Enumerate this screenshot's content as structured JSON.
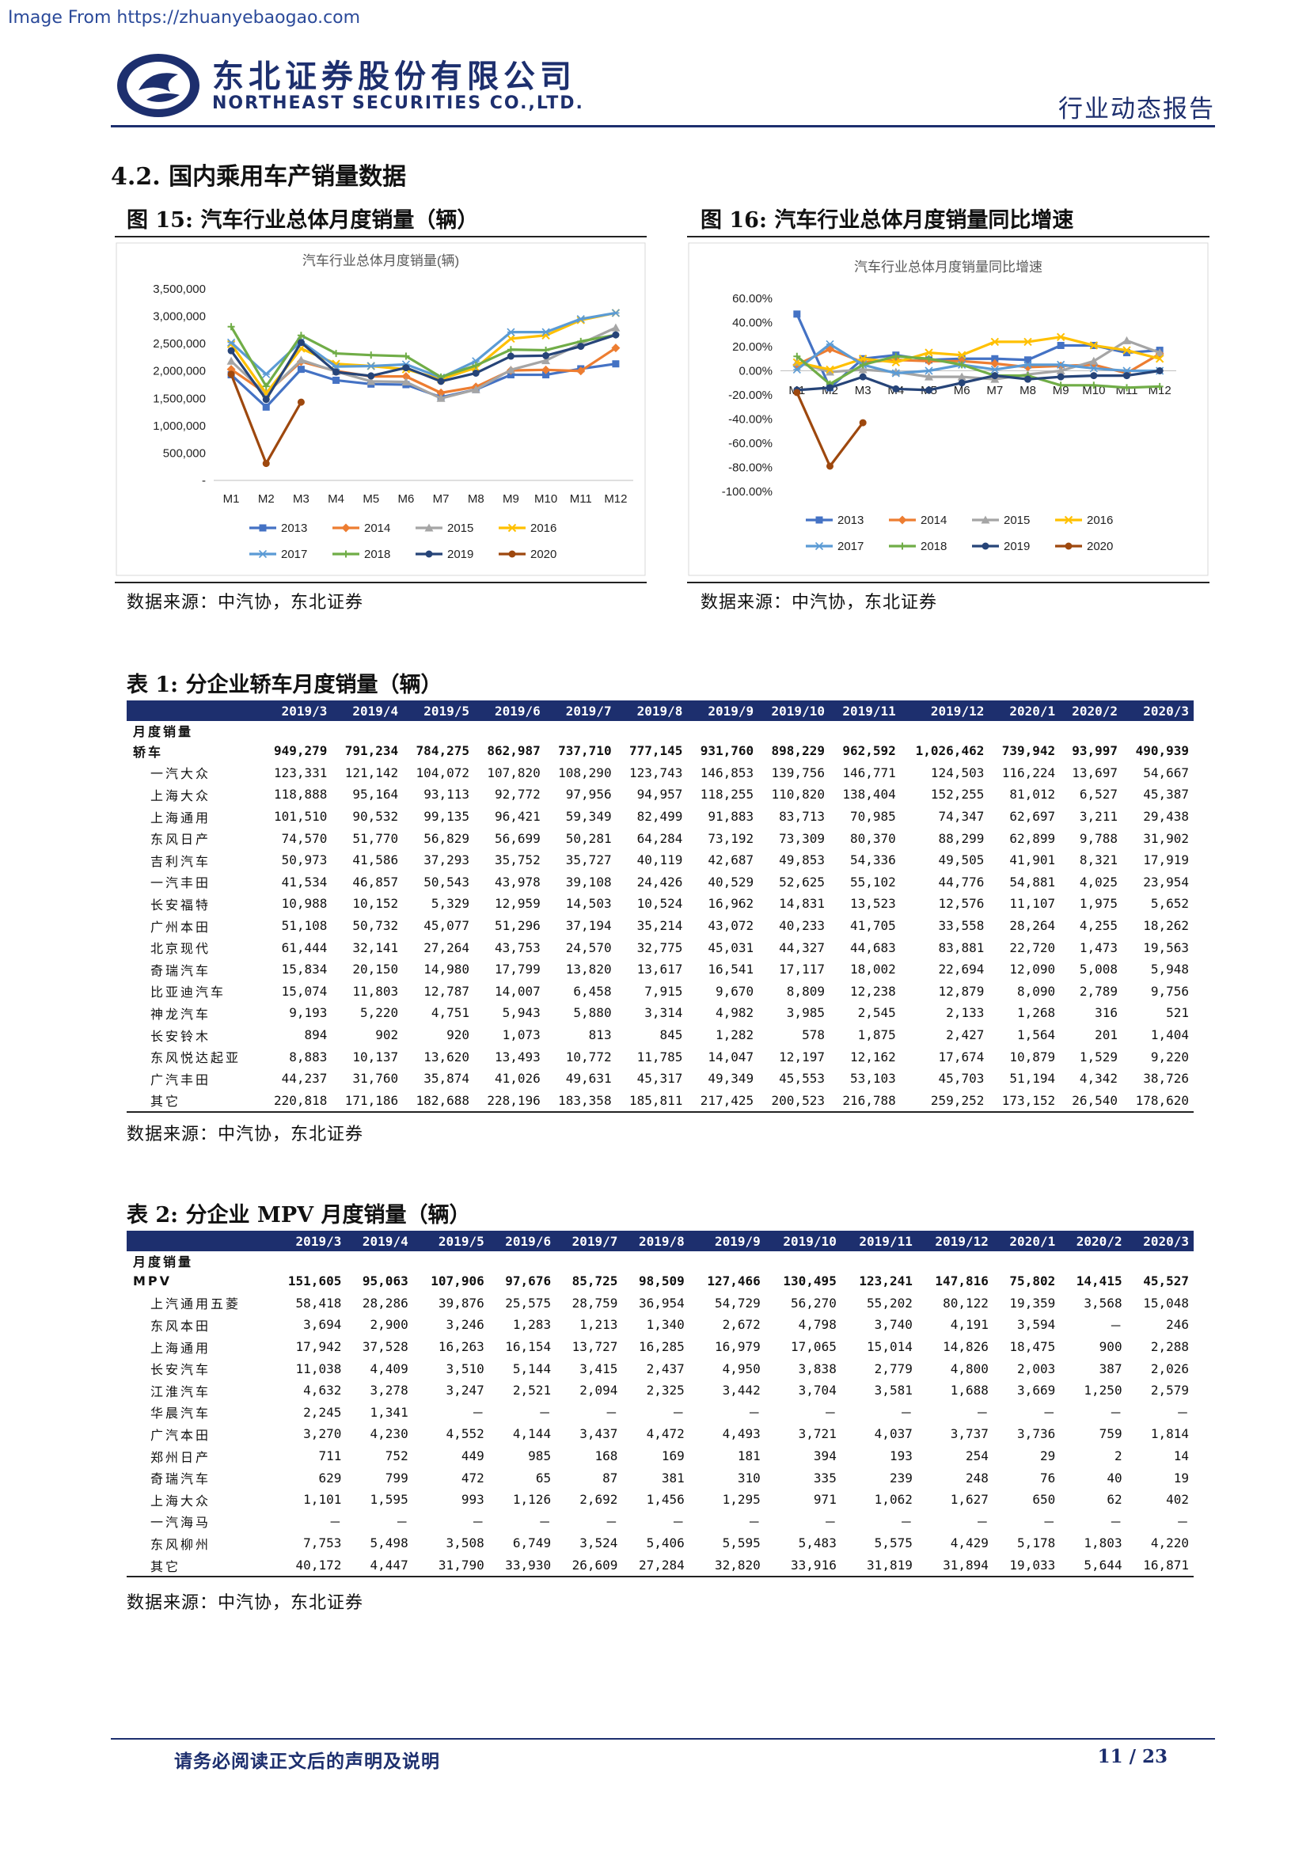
{
  "watermark": "Image From https://zhuanyebaogao.com",
  "header": {
    "company_cn": "东北证券股份有限公司",
    "company_en": "NORTHEAST SECURITIES CO.,LTD.",
    "report_type": "行业动态报告"
  },
  "section_title": "4.2.   国内乘用车产销量数据",
  "figure15": {
    "caption": "图  15:  汽车行业总体月度销量（辆）",
    "source": "数据来源：中汽协，东北证券"
  },
  "figure16": {
    "caption": "图  16:  汽车行业总体月度销量同比增速",
    "source": "数据来源：中汽协，东北证券"
  },
  "chart_data": [
    {
      "type": "line",
      "title": "汽车行业总体月度销量(辆)",
      "categories": [
        "M1",
        "M2",
        "M3",
        "M4",
        "M5",
        "M6",
        "M7",
        "M8",
        "M9",
        "M10",
        "M11",
        "M12"
      ],
      "y_ticks": [
        "3,500,000",
        "3,000,000",
        "2,500,000",
        "2,000,000",
        "1,500,000",
        "1,000,000",
        "500,000",
        "-"
      ],
      "ylim": [
        0,
        3500000
      ],
      "legend_position": "bottom",
      "series": [
        {
          "name": "2013",
          "color": "#4472c4",
          "marker": "square",
          "values": [
            1930000,
            1340000,
            2030000,
            1830000,
            1760000,
            1750000,
            1520000,
            1660000,
            1930000,
            1930000,
            2040000,
            2130000
          ]
        },
        {
          "name": "2014",
          "color": "#ed7d31",
          "marker": "diamond",
          "values": [
            2030000,
            1590000,
            2170000,
            2000000,
            1900000,
            1900000,
            1600000,
            1710000,
            2010000,
            2020000,
            2000000,
            2420000
          ]
        },
        {
          "name": "2015",
          "color": "#a5a5a5",
          "marker": "triangle",
          "values": [
            2180000,
            1580000,
            2200000,
            1990000,
            1810000,
            1800000,
            1500000,
            1660000,
            2020000,
            2190000,
            2500000,
            2790000
          ]
        },
        {
          "name": "2016",
          "color": "#ffc000",
          "marker": "cross",
          "values": [
            2490000,
            1590000,
            2410000,
            2130000,
            2090000,
            2030000,
            1850000,
            2060000,
            2590000,
            2650000,
            2930000,
            3060000
          ]
        },
        {
          "name": "2017",
          "color": "#5b9bd5",
          "marker": "star",
          "values": [
            2520000,
            1940000,
            2540000,
            2080000,
            2090000,
            2120000,
            1880000,
            2180000,
            2710000,
            2710000,
            2950000,
            3060000
          ]
        },
        {
          "name": "2018",
          "color": "#70ad47",
          "marker": "plus",
          "values": [
            2810000,
            1720000,
            2650000,
            2320000,
            2290000,
            2270000,
            1890000,
            2100000,
            2390000,
            2380000,
            2540000,
            2660000
          ]
        },
        {
          "name": "2019",
          "color": "#264478",
          "marker": "circle",
          "values": [
            2370000,
            1480000,
            2520000,
            1980000,
            1910000,
            2060000,
            1810000,
            1960000,
            2270000,
            2280000,
            2450000,
            2660000
          ]
        },
        {
          "name": "2020",
          "color": "#9e480e",
          "marker": "circle",
          "values": [
            1940000,
            310000,
            1430000,
            null,
            null,
            null,
            null,
            null,
            null,
            null,
            null,
            null
          ]
        }
      ]
    },
    {
      "type": "line",
      "title": "汽车行业总体月度销量同比增速",
      "categories": [
        "M1",
        "M2",
        "M3",
        "M4",
        "M5",
        "M6",
        "M7",
        "M8",
        "M9",
        "M10",
        "M11",
        "M12"
      ],
      "y_ticks": [
        "60.00%",
        "40.00%",
        "20.00%",
        "0.00%",
        "-20.00%",
        "-40.00%",
        "-60.00%",
        "-80.00%",
        "-100.00%"
      ],
      "ylim": [
        -100,
        60
      ],
      "legend_position": "bottom",
      "series": [
        {
          "name": "2013",
          "color": "#4472c4",
          "marker": "square",
          "values": [
            47,
            -14,
            10,
            13,
            9,
            10,
            10,
            9,
            21,
            21,
            15,
            17
          ]
        },
        {
          "name": "2014",
          "color": "#ed7d31",
          "marker": "diamond",
          "values": [
            5,
            18,
            7,
            9,
            8,
            8,
            6,
            3,
            4,
            5,
            -2,
            14
          ]
        },
        {
          "name": "2015",
          "color": "#a5a5a5",
          "marker": "triangle",
          "values": [
            7,
            -1,
            1,
            -1,
            -5,
            -5,
            -7,
            -3,
            0,
            8,
            25,
            15
          ]
        },
        {
          "name": "2016",
          "color": "#ffc000",
          "marker": "cross",
          "values": [
            7,
            1,
            10,
            7,
            15,
            13,
            24,
            24,
            28,
            21,
            17,
            10
          ]
        },
        {
          "name": "2017",
          "color": "#5b9bd5",
          "marker": "star",
          "values": [
            1,
            22,
            5,
            -2,
            0,
            5,
            1,
            5,
            5,
            2,
            0,
            0
          ]
        },
        {
          "name": "2018",
          "color": "#70ad47",
          "marker": "plus",
          "values": [
            12,
            -11,
            5,
            12,
            10,
            5,
            -4,
            -4,
            -12,
            -12,
            -14,
            -13
          ]
        },
        {
          "name": "2019",
          "color": "#264478",
          "marker": "circle",
          "values": [
            -16,
            -14,
            -5,
            -15,
            -16,
            -10,
            -4,
            -7,
            -5,
            -4,
            -4,
            0
          ]
        },
        {
          "name": "2020",
          "color": "#9e480e",
          "marker": "circle",
          "values": [
            -18,
            -79,
            -43,
            null,
            null,
            null,
            null,
            null,
            null,
            null,
            null,
            null
          ]
        }
      ]
    }
  ],
  "table1": {
    "caption": "表  1:  分企业轿车月度销量（辆）",
    "headers": [
      "2019/3",
      "2019/4",
      "2019/5",
      "2019/6",
      "2019/7",
      "2019/8",
      "2019/9",
      "2019/10",
      "2019/11",
      "2019/12",
      "2020/1",
      "2020/2",
      "2020/3"
    ],
    "label_row": "月度销量",
    "rows": [
      {
        "name": "轿车",
        "bold": true,
        "values": [
          "949,279",
          "791,234",
          "784,275",
          "862,987",
          "737,710",
          "777,145",
          "931,760",
          "898,229",
          "962,592",
          "1,026,462",
          "739,942",
          "93,997",
          "490,939"
        ]
      },
      {
        "name": "一汽大众",
        "values": [
          "123,331",
          "121,142",
          "104,072",
          "107,820",
          "108,290",
          "123,743",
          "146,853",
          "139,756",
          "146,771",
          "124,503",
          "116,224",
          "13,697",
          "54,667"
        ]
      },
      {
        "name": "上海大众",
        "values": [
          "118,888",
          "95,164",
          "93,113",
          "92,772",
          "97,956",
          "94,957",
          "118,255",
          "110,820",
          "138,404",
          "152,255",
          "81,012",
          "6,527",
          "45,387"
        ]
      },
      {
        "name": "上海通用",
        "values": [
          "101,510",
          "90,532",
          "99,135",
          "96,421",
          "59,349",
          "82,499",
          "91,883",
          "83,713",
          "70,985",
          "74,347",
          "62,697",
          "3,211",
          "29,438"
        ]
      },
      {
        "name": "东风日产",
        "values": [
          "74,570",
          "51,770",
          "56,829",
          "56,699",
          "50,281",
          "64,284",
          "73,192",
          "73,309",
          "80,370",
          "88,299",
          "62,899",
          "9,788",
          "31,902"
        ]
      },
      {
        "name": "吉利汽车",
        "values": [
          "50,973",
          "41,586",
          "37,293",
          "35,752",
          "35,727",
          "40,119",
          "42,687",
          "49,853",
          "54,336",
          "49,505",
          "41,901",
          "8,321",
          "17,919"
        ]
      },
      {
        "name": "一汽丰田",
        "values": [
          "41,534",
          "46,857",
          "50,543",
          "43,978",
          "39,108",
          "24,426",
          "40,529",
          "52,625",
          "55,102",
          "44,776",
          "54,881",
          "4,025",
          "23,954"
        ]
      },
      {
        "name": "长安福特",
        "values": [
          "10,988",
          "10,152",
          "5,329",
          "12,959",
          "14,503",
          "10,524",
          "16,962",
          "14,831",
          "13,523",
          "12,576",
          "11,107",
          "1,975",
          "5,652"
        ]
      },
      {
        "name": "广州本田",
        "values": [
          "51,108",
          "50,732",
          "45,077",
          "51,296",
          "37,194",
          "35,214",
          "43,072",
          "40,233",
          "41,705",
          "33,558",
          "28,264",
          "4,255",
          "18,262"
        ]
      },
      {
        "name": "北京现代",
        "values": [
          "61,444",
          "32,141",
          "27,264",
          "43,753",
          "24,570",
          "32,775",
          "45,031",
          "44,327",
          "44,683",
          "83,881",
          "22,720",
          "1,473",
          "19,563"
        ]
      },
      {
        "name": "奇瑞汽车",
        "values": [
          "15,834",
          "20,150",
          "14,980",
          "17,799",
          "13,820",
          "13,617",
          "16,541",
          "17,117",
          "18,002",
          "22,694",
          "12,090",
          "5,008",
          "5,948"
        ]
      },
      {
        "name": "比亚迪汽车",
        "values": [
          "15,074",
          "11,803",
          "12,787",
          "14,007",
          "6,458",
          "7,915",
          "9,670",
          "8,809",
          "12,238",
          "12,879",
          "8,090",
          "2,789",
          "9,756"
        ]
      },
      {
        "name": "神龙汽车",
        "values": [
          "9,193",
          "5,220",
          "4,751",
          "5,943",
          "5,880",
          "3,314",
          "4,982",
          "3,985",
          "2,545",
          "2,133",
          "1,268",
          "316",
          "521"
        ]
      },
      {
        "name": "长安铃木",
        "values": [
          "894",
          "902",
          "920",
          "1,073",
          "813",
          "845",
          "1,282",
          "578",
          "1,875",
          "2,427",
          "1,564",
          "201",
          "1,404"
        ]
      },
      {
        "name": "东风悦达起亚",
        "values": [
          "8,883",
          "10,137",
          "13,620",
          "13,493",
          "10,772",
          "11,785",
          "14,047",
          "12,197",
          "12,162",
          "17,674",
          "10,879",
          "1,529",
          "9,220"
        ]
      },
      {
        "name": "广汽丰田",
        "values": [
          "44,237",
          "31,760",
          "35,874",
          "41,026",
          "49,631",
          "45,317",
          "49,349",
          "45,553",
          "53,103",
          "45,703",
          "51,194",
          "4,342",
          "38,726"
        ]
      },
      {
        "name": "其它",
        "values": [
          "220,818",
          "171,186",
          "182,688",
          "228,196",
          "183,358",
          "185,811",
          "217,425",
          "200,523",
          "216,788",
          "259,252",
          "173,152",
          "26,540",
          "178,620"
        ]
      }
    ],
    "source": "数据来源：中汽协，东北证券"
  },
  "table2": {
    "caption": "表  2:  分企业 MPV 月度销量（辆）",
    "headers": [
      "2019/3",
      "2019/4",
      "2019/5",
      "2019/6",
      "2019/7",
      "2019/8",
      "2019/9",
      "2019/10",
      "2019/11",
      "2019/12",
      "2020/1",
      "2020/2",
      "2020/3"
    ],
    "label_row": "月度销量",
    "rows": [
      {
        "name": "MPV",
        "bold": true,
        "values": [
          "151,605",
          "95,063",
          "107,906",
          "97,676",
          "85,725",
          "98,509",
          "127,466",
          "130,495",
          "123,241",
          "147,816",
          "75,802",
          "14,415",
          "45,527"
        ]
      },
      {
        "name": "上汽通用五菱",
        "values": [
          "58,418",
          "28,286",
          "39,876",
          "25,575",
          "28,759",
          "36,954",
          "54,729",
          "56,270",
          "55,202",
          "80,122",
          "19,359",
          "3,568",
          "15,048"
        ]
      },
      {
        "name": "东风本田",
        "values": [
          "3,694",
          "2,900",
          "3,246",
          "1,283",
          "1,213",
          "1,340",
          "2,672",
          "4,798",
          "3,740",
          "4,191",
          "3,594",
          "－",
          "246"
        ]
      },
      {
        "name": "上海通用",
        "values": [
          "17,942",
          "37,528",
          "16,263",
          "16,154",
          "13,727",
          "16,285",
          "16,979",
          "17,065",
          "15,014",
          "14,826",
          "18,475",
          "900",
          "2,288"
        ]
      },
      {
        "name": "长安汽车",
        "values": [
          "11,038",
          "4,409",
          "3,510",
          "5,144",
          "3,415",
          "2,437",
          "4,950",
          "3,838",
          "2,779",
          "4,800",
          "2,003",
          "387",
          "2,026"
        ]
      },
      {
        "name": "江淮汽车",
        "values": [
          "4,632",
          "3,278",
          "3,247",
          "2,521",
          "2,094",
          "2,325",
          "3,442",
          "3,704",
          "3,581",
          "1,688",
          "3,669",
          "1,250",
          "2,579"
        ]
      },
      {
        "name": "华晨汽车",
        "values": [
          "2,245",
          "1,341",
          "－",
          "－",
          "－",
          "－",
          "－",
          "－",
          "－",
          "－",
          "－",
          "－",
          "－"
        ]
      },
      {
        "name": "广汽本田",
        "values": [
          "3,270",
          "4,230",
          "4,552",
          "4,144",
          "3,437",
          "4,472",
          "4,493",
          "3,721",
          "4,037",
          "3,737",
          "3,736",
          "759",
          "1,814"
        ]
      },
      {
        "name": "郑州日产",
        "values": [
          "711",
          "752",
          "449",
          "985",
          "168",
          "169",
          "181",
          "394",
          "193",
          "254",
          "29",
          "2",
          "14"
        ]
      },
      {
        "name": "奇瑞汽车",
        "values": [
          "629",
          "799",
          "472",
          "65",
          "87",
          "381",
          "310",
          "335",
          "239",
          "248",
          "76",
          "40",
          "19"
        ]
      },
      {
        "name": "上海大众",
        "values": [
          "1,101",
          "1,595",
          "993",
          "1,126",
          "2,692",
          "1,456",
          "1,295",
          "971",
          "1,062",
          "1,627",
          "650",
          "62",
          "402"
        ]
      },
      {
        "name": "一汽海马",
        "values": [
          "－",
          "－",
          "－",
          "－",
          "－",
          "－",
          "－",
          "－",
          "－",
          "－",
          "－",
          "－",
          "－"
        ]
      },
      {
        "name": "东风柳州",
        "values": [
          "7,753",
          "5,498",
          "3,508",
          "6,749",
          "3,524",
          "5,406",
          "5,595",
          "5,483",
          "5,575",
          "4,429",
          "5,178",
          "1,803",
          "4,220"
        ]
      },
      {
        "name": "其它",
        "values": [
          "40,172",
          "4,447",
          "31,790",
          "33,930",
          "26,609",
          "27,284",
          "32,820",
          "33,916",
          "31,819",
          "31,894",
          "19,033",
          "5,644",
          "16,871"
        ]
      }
    ],
    "source": "数据来源：中汽协，东北证券"
  },
  "footer": {
    "note": "请务必阅读正文后的声明及说明",
    "page": "11 / 23"
  }
}
